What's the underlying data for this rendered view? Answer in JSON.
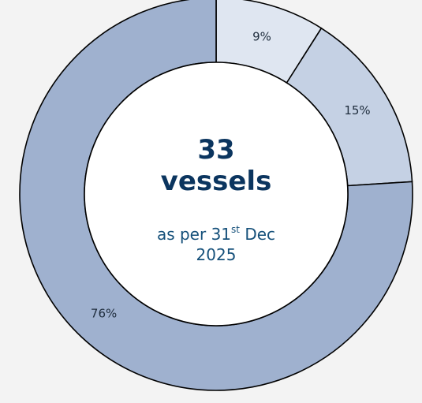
{
  "chart_data": {
    "type": "pie",
    "slices": [
      {
        "label": "9%",
        "value": 9,
        "color": "#dfe6f1"
      },
      {
        "label": "15%",
        "value": 15,
        "color": "#c5d1e4"
      },
      {
        "label": "76%",
        "value": 76,
        "color": "#9fb1cf"
      }
    ],
    "center": {
      "count": "33",
      "unit": "vessels",
      "date_prefix": "as per 31",
      "date_sup": "st",
      "date_suffix": " Dec",
      "date_year": "2025"
    }
  }
}
